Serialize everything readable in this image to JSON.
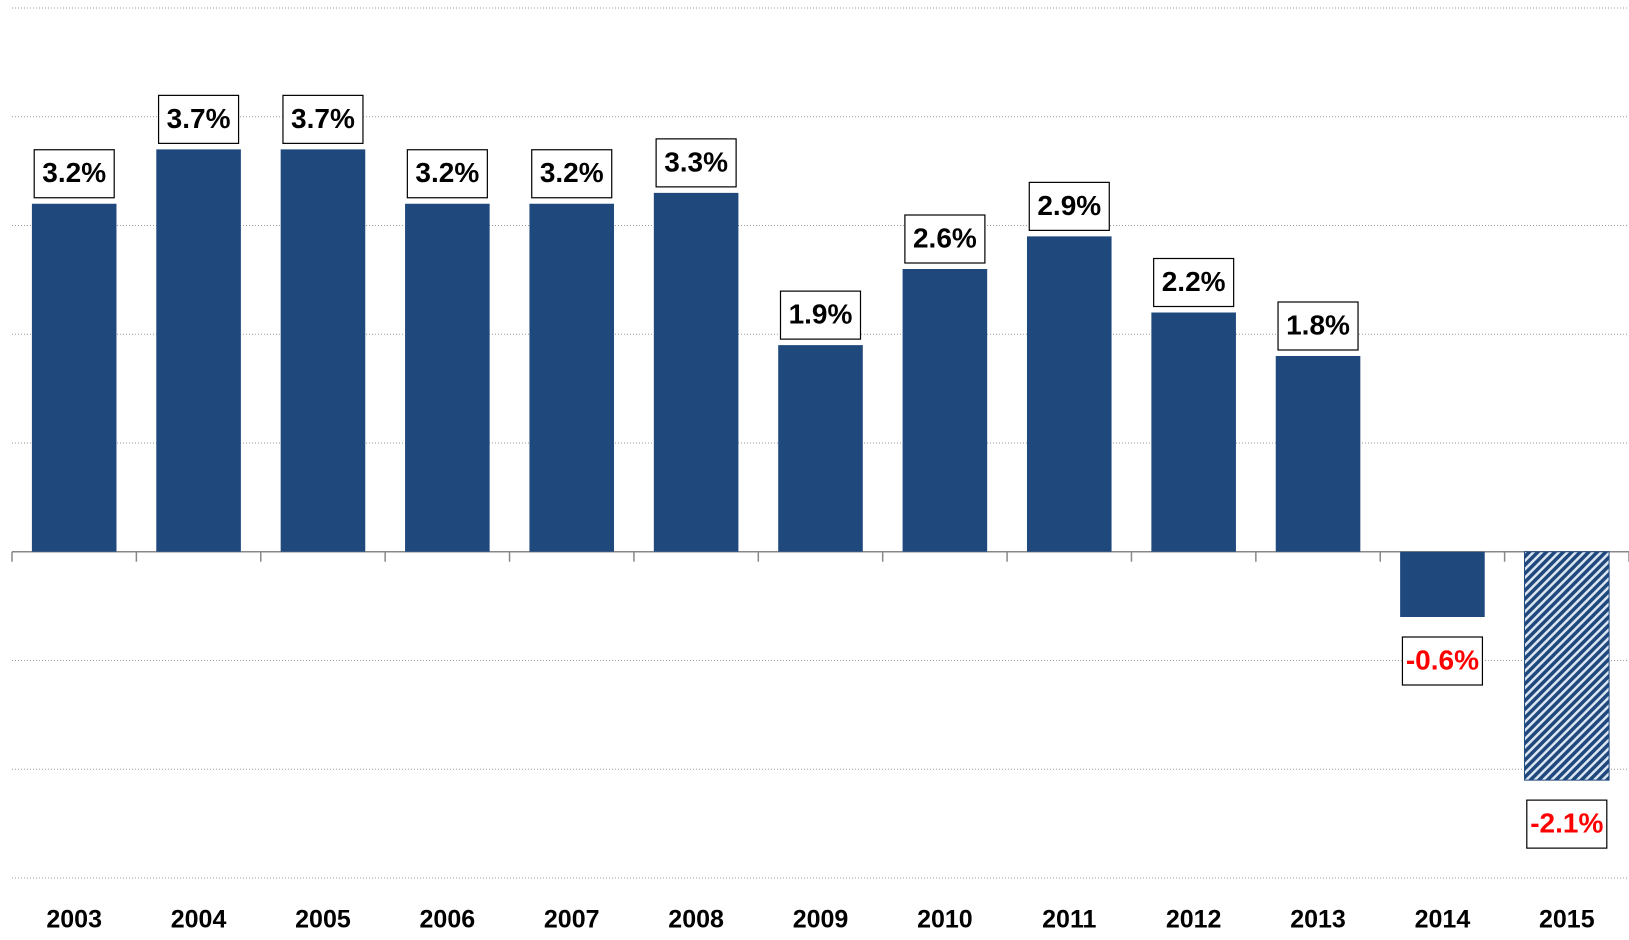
{
  "chart_data": {
    "type": "bar",
    "categories": [
      "2003",
      "2004",
      "2005",
      "2006",
      "2007",
      "2008",
      "2009",
      "2010",
      "2011",
      "2012",
      "2013",
      "2014",
      "2015"
    ],
    "values": [
      3.2,
      3.7,
      3.7,
      3.2,
      3.2,
      3.3,
      1.9,
      2.6,
      2.9,
      2.2,
      1.8,
      -0.6,
      -2.1
    ],
    "value_labels": [
      "3.2%",
      "3.7%",
      "3.7%",
      "3.2%",
      "3.2%",
      "3.3%",
      "1.9%",
      "2.6%",
      "2.9%",
      "2.2%",
      "1.8%",
      "-0.6%",
      "-2.1%"
    ],
    "color": "#1f497d",
    "bar_patterns": [
      "solid",
      "solid",
      "solid",
      "solid",
      "solid",
      "solid",
      "solid",
      "solid",
      "solid",
      "solid",
      "solid",
      "solid",
      "hatch"
    ],
    "value_label_colors": [
      "#000000",
      "#000000",
      "#000000",
      "#000000",
      "#000000",
      "#000000",
      "#000000",
      "#000000",
      "#000000",
      "#000000",
      "#000000",
      "#ff0000",
      "#ff0000"
    ],
    "ylim": [
      -3,
      5
    ],
    "yticks": [
      -3,
      -2,
      -1,
      0,
      1,
      2,
      3,
      4,
      5
    ],
    "grid": true,
    "ytick_labels_shown": false
  }
}
